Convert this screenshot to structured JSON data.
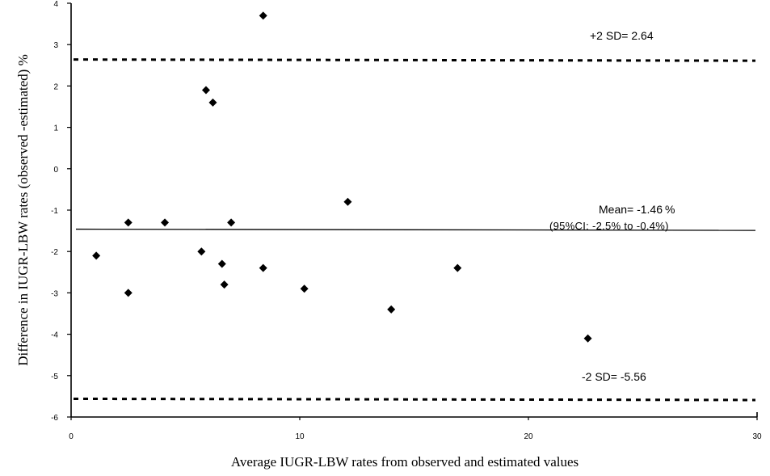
{
  "chart_data": {
    "type": "scatter",
    "title": "",
    "xlabel": "Average IUGR-LBW rates from observed and estimated values",
    "ylabel": "Difference in IUGR-LBW rates (observed -estimated) %",
    "xlim": [
      0,
      30
    ],
    "ylim": [
      -6,
      4
    ],
    "x_ticks": [
      0,
      10,
      20,
      30
    ],
    "y_ticks": [
      4,
      3,
      2,
      1,
      0,
      -1,
      -2,
      -3,
      -4,
      -5,
      -6
    ],
    "grid": false,
    "points": [
      {
        "x": 1.1,
        "y": -2.1
      },
      {
        "x": 2.5,
        "y": -1.3
      },
      {
        "x": 2.5,
        "y": -3.0
      },
      {
        "x": 4.1,
        "y": -1.3
      },
      {
        "x": 5.7,
        "y": -2.0
      },
      {
        "x": 5.9,
        "y": 1.9
      },
      {
        "x": 6.2,
        "y": 1.6
      },
      {
        "x": 6.6,
        "y": -2.3
      },
      {
        "x": 6.7,
        "y": -2.8
      },
      {
        "x": 7.0,
        "y": -1.3
      },
      {
        "x": 8.4,
        "y": -2.4
      },
      {
        "x": 8.4,
        "y": 3.7
      },
      {
        "x": 10.2,
        "y": -2.9
      },
      {
        "x": 12.1,
        "y": -0.8
      },
      {
        "x": 14.0,
        "y": -3.4
      },
      {
        "x": 16.9,
        "y": -2.4
      },
      {
        "x": 22.6,
        "y": -4.1
      }
    ],
    "reference_lines": [
      {
        "label": "+2 SD= 2.64",
        "y": 2.64,
        "style": "dashed"
      },
      {
        "label": "Mean= -1.46",
        "unit": "%",
        "y": -1.46,
        "style": "solid",
        "sublabel": "(95%CI: -2.5% to -0.4%)"
      },
      {
        "label": "-2 SD= -5.56",
        "y": -5.56,
        "style": "dashed"
      }
    ]
  }
}
